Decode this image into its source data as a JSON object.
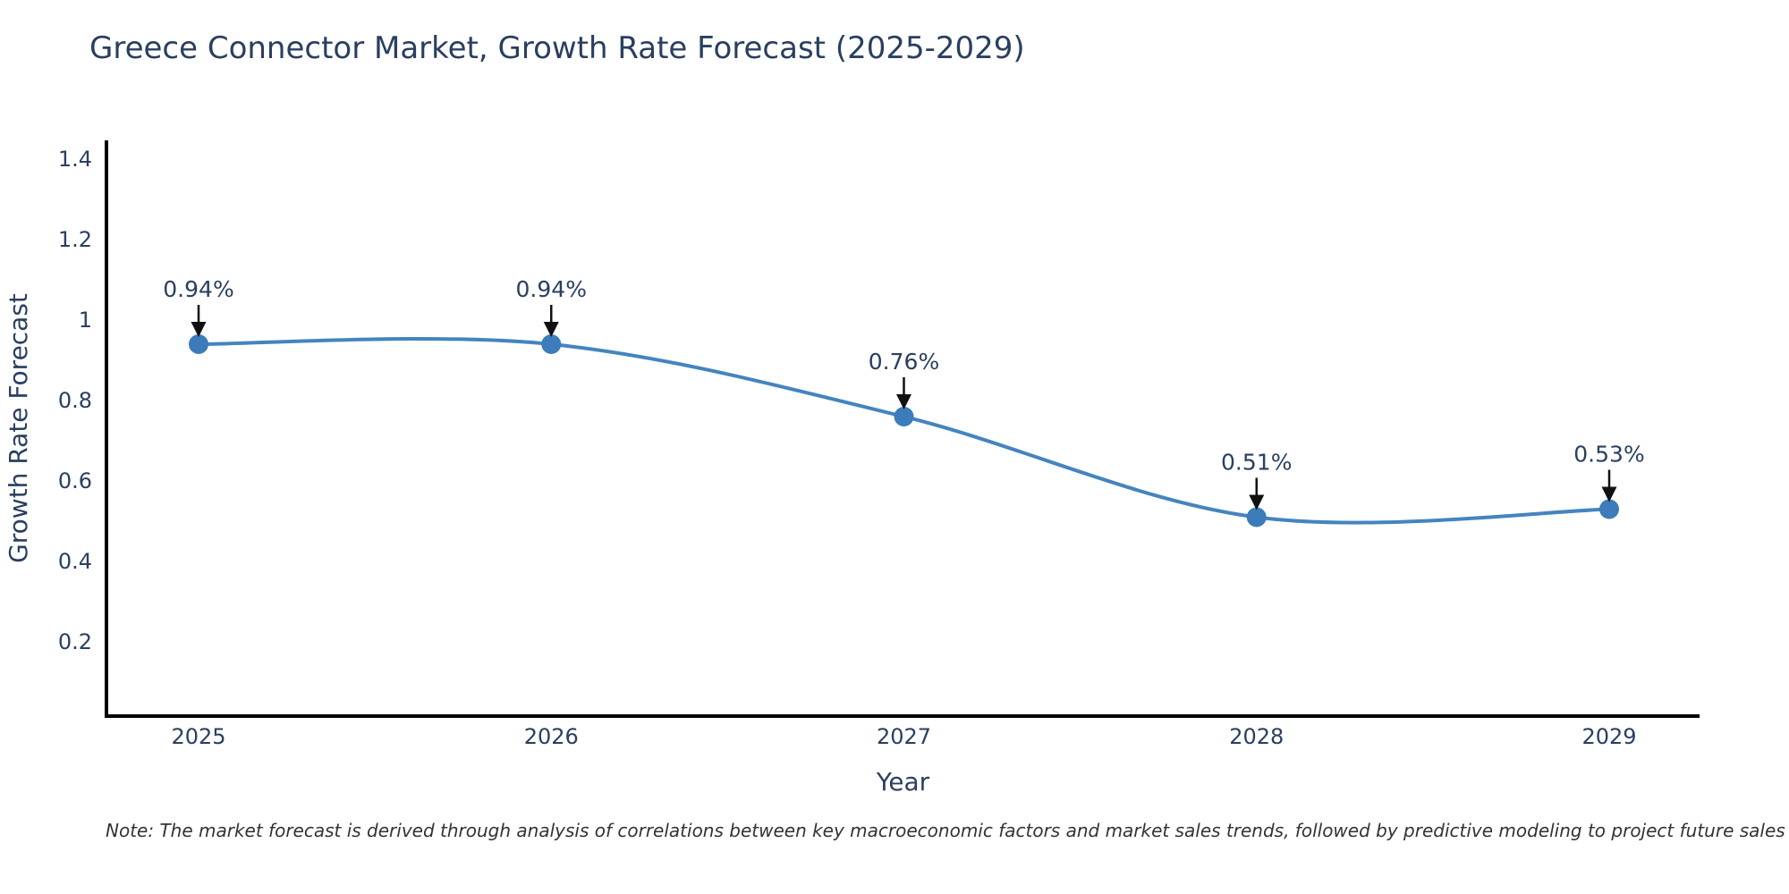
{
  "figure": {
    "background": "#ffffff",
    "note": "Note: The market forecast is derived through analysis of correlations between key macroeconomic factors and market sales trends, followed by predictive modeling to project future sales"
  },
  "chart_data": {
    "type": "line",
    "title": "Greece Connector Market, Growth Rate Forecast (2025-2029)",
    "xlabel": "Year",
    "ylabel": "Growth Rate Forecast",
    "x": [
      2025,
      2026,
      2027,
      2028,
      2029
    ],
    "x_tick_labels": [
      "2025",
      "2026",
      "2027",
      "2028",
      "2029"
    ],
    "series": [
      {
        "name": "Growth Rate Forecast",
        "values": [
          0.94,
          0.94,
          0.76,
          0.51,
          0.53
        ],
        "point_labels": [
          "0.94%",
          "0.94%",
          "0.76%",
          "0.51%",
          "0.53%"
        ]
      }
    ],
    "y_ticks": [
      1.4,
      1.2,
      1,
      0.8,
      0.6,
      0.4,
      0.2
    ],
    "ylim": [
      0.015,
      1.44
    ],
    "line_shape": "spline",
    "grid": false,
    "legend_position": "none",
    "annotations_have_arrows": true,
    "colors": {
      "line": "#4484bf",
      "marker": "#3c7cba",
      "axis_line": "#000000",
      "tick_text": "#2a3f5f",
      "title_text": "#2a3f5f",
      "annotation_text": "#2a3f5f",
      "arrow": "#111111"
    }
  }
}
